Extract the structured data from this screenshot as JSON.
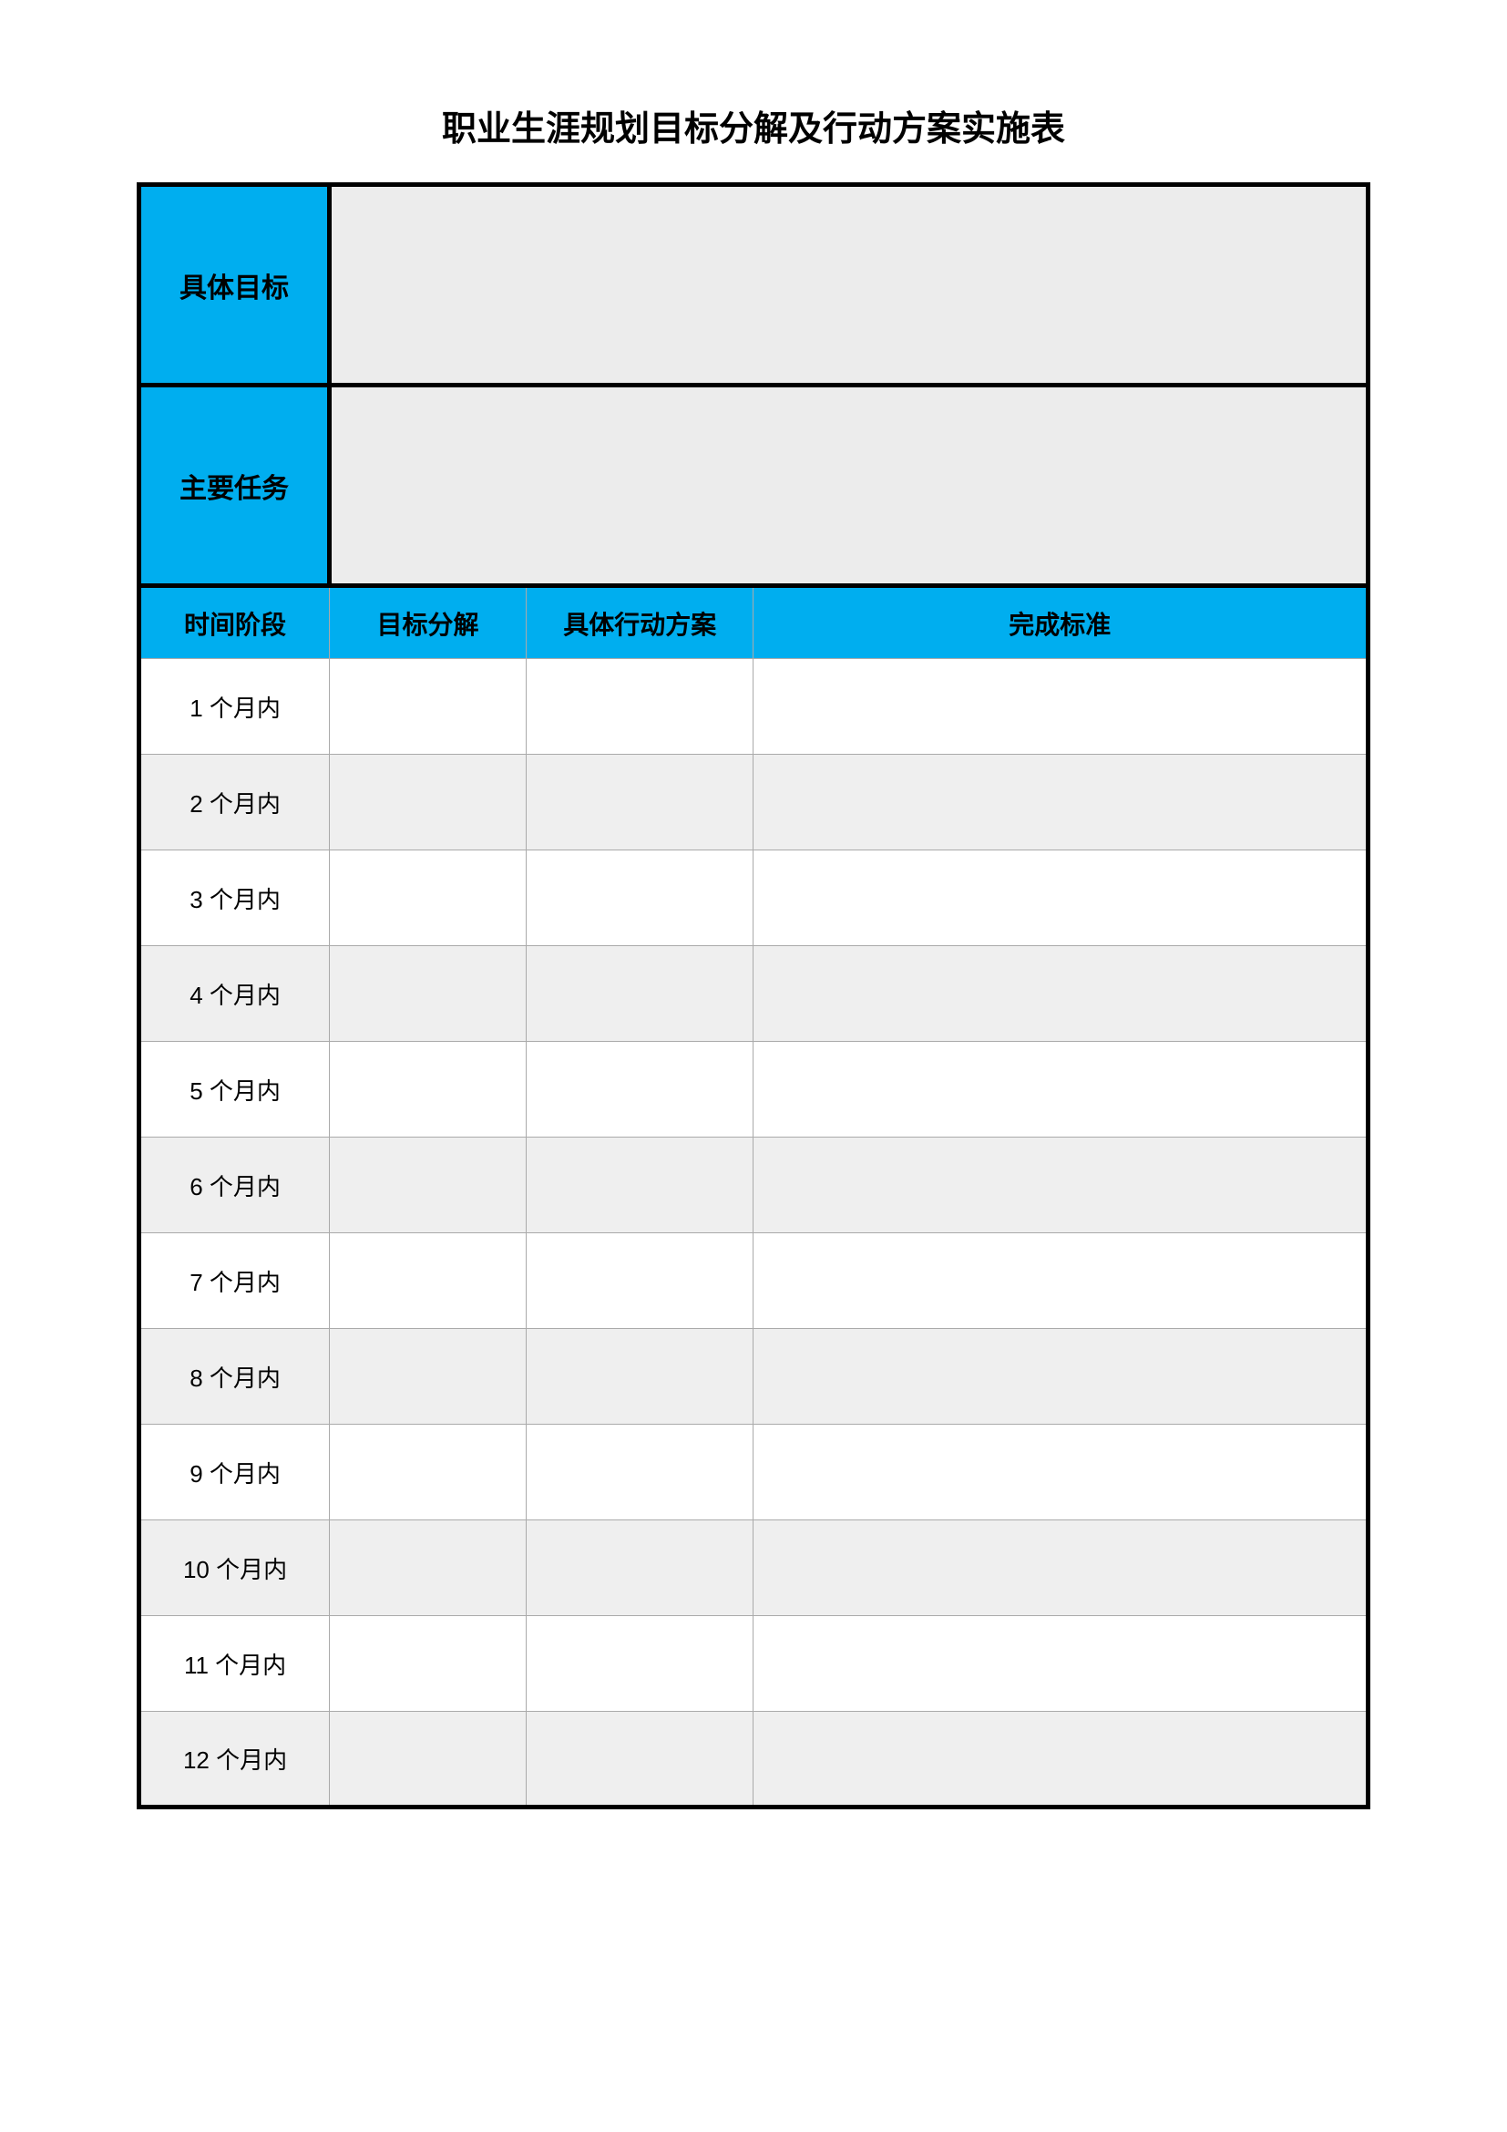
{
  "title": "职业生涯规划目标分解及行动方案实施表",
  "header_rows": [
    {
      "label": "具体目标",
      "content": ""
    },
    {
      "label": "主要任务",
      "content": ""
    }
  ],
  "column_headers": {
    "time": "时间阶段",
    "goal": "目标分解",
    "action": "具体行动方案",
    "standard": "完成标准"
  },
  "rows": [
    {
      "time": "1 个月内",
      "goal": "",
      "action": "",
      "standard": ""
    },
    {
      "time": "2 个月内",
      "goal": "",
      "action": "",
      "standard": ""
    },
    {
      "time": "3 个月内",
      "goal": "",
      "action": "",
      "standard": ""
    },
    {
      "time": "4 个月内",
      "goal": "",
      "action": "",
      "standard": ""
    },
    {
      "time": "5 个月内",
      "goal": "",
      "action": "",
      "standard": ""
    },
    {
      "time": "6 个月内",
      "goal": "",
      "action": "",
      "standard": ""
    },
    {
      "time": "7 个月内",
      "goal": "",
      "action": "",
      "standard": ""
    },
    {
      "time": "8 个月内",
      "goal": "",
      "action": "",
      "standard": ""
    },
    {
      "time": "9 个月内",
      "goal": "",
      "action": "",
      "standard": ""
    },
    {
      "time": "10 个月内",
      "goal": "",
      "action": "",
      "standard": ""
    },
    {
      "time": "11 个月内",
      "goal": "",
      "action": "",
      "standard": ""
    },
    {
      "time": "12 个月内",
      "goal": "",
      "action": "",
      "standard": ""
    }
  ],
  "colors": {
    "header_blue": "#00aeef",
    "light_gray": "#ececec",
    "row_alt_gray": "#efefef",
    "white": "#ffffff",
    "border_black": "#000000",
    "border_gray": "#aaaaaa"
  }
}
